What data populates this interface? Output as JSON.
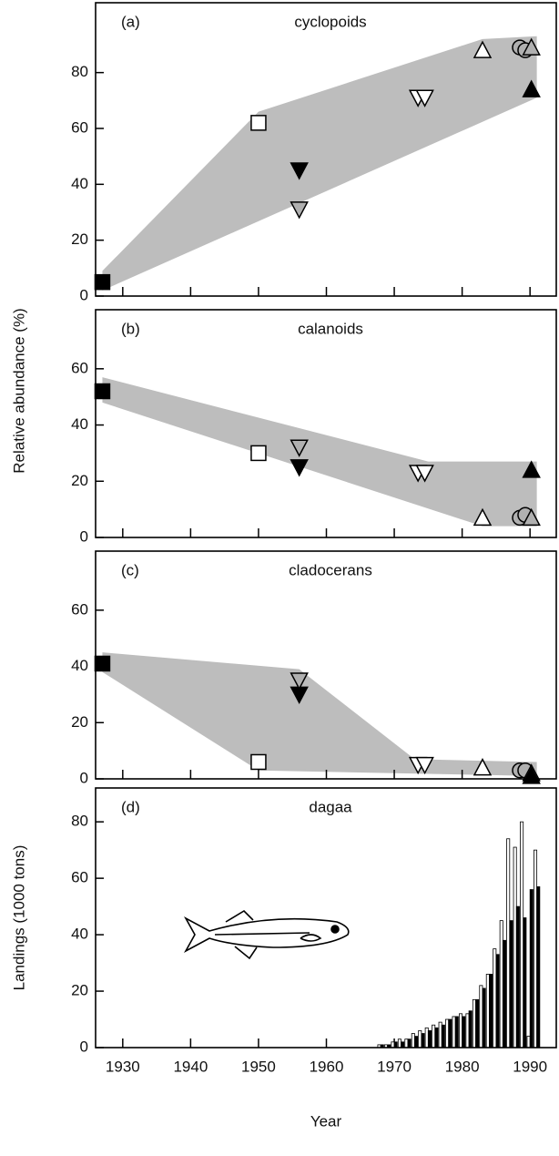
{
  "chart_data": [
    {
      "type": "scatter",
      "label": "(a)",
      "title": "cyclopoids",
      "xlim": [
        1926,
        1994
      ],
      "ylim": [
        0,
        105
      ],
      "yticks": [
        0,
        20,
        40,
        60,
        80
      ],
      "envelope": {
        "x": [
          1927,
          1950,
          1983,
          1991,
          1991,
          1927
        ],
        "y": [
          9,
          66,
          92,
          93,
          71,
          2
        ]
      },
      "series": [
        {
          "marker": "square",
          "fill": "#000000",
          "x": [
            1927
          ],
          "values": [
            5
          ]
        },
        {
          "marker": "square",
          "fill": "#ffffff",
          "x": [
            1950
          ],
          "values": [
            62
          ]
        },
        {
          "marker": "down",
          "fill": "#000000",
          "x": [
            1956
          ],
          "values": [
            45
          ]
        },
        {
          "marker": "down",
          "fill": "#b0b0b0",
          "x": [
            1956
          ],
          "values": [
            31
          ]
        },
        {
          "marker": "down",
          "fill": "#ffffff",
          "x": [
            1973.5,
            1974.5
          ],
          "values": [
            71,
            71
          ]
        },
        {
          "marker": "up",
          "fill": "#ffffff",
          "x": [
            1983
          ],
          "values": [
            88
          ]
        },
        {
          "marker": "circle",
          "fill": "#b0b0b0",
          "x": [
            1988.5,
            1989.3
          ],
          "values": [
            89,
            88
          ]
        },
        {
          "marker": "up",
          "fill": "#b0b0b0",
          "x": [
            1990.2
          ],
          "values": [
            89
          ]
        },
        {
          "marker": "up",
          "fill": "#000000",
          "x": [
            1990.2
          ],
          "values": [
            74
          ]
        }
      ]
    },
    {
      "type": "scatter",
      "label": "(b)",
      "title": "calanoids",
      "ylabel": "Relative abundance (%)",
      "xlim": [
        1926,
        1994
      ],
      "ylim": [
        0,
        81
      ],
      "yticks": [
        0,
        20,
        40,
        60
      ],
      "envelope": {
        "x": [
          1927,
          1975,
          1991,
          1991,
          1983,
          1927
        ],
        "y": [
          57,
          27,
          27,
          4,
          4,
          48
        ]
      },
      "series": [
        {
          "marker": "square",
          "fill": "#000000",
          "x": [
            1927
          ],
          "values": [
            52
          ]
        },
        {
          "marker": "square",
          "fill": "#ffffff",
          "x": [
            1950
          ],
          "values": [
            30
          ]
        },
        {
          "marker": "down",
          "fill": "#000000",
          "x": [
            1956
          ],
          "values": [
            25
          ]
        },
        {
          "marker": "down",
          "fill": "#b0b0b0",
          "x": [
            1956
          ],
          "values": [
            32
          ]
        },
        {
          "marker": "down",
          "fill": "#ffffff",
          "x": [
            1973.5,
            1974.5
          ],
          "values": [
            23,
            23
          ]
        },
        {
          "marker": "up",
          "fill": "#ffffff",
          "x": [
            1983
          ],
          "values": [
            7
          ]
        },
        {
          "marker": "circle",
          "fill": "#b0b0b0",
          "x": [
            1988.5,
            1989.3
          ],
          "values": [
            7,
            8
          ]
        },
        {
          "marker": "up",
          "fill": "#b0b0b0",
          "x": [
            1990.2
          ],
          "values": [
            7
          ]
        },
        {
          "marker": "up",
          "fill": "#000000",
          "x": [
            1990.2
          ],
          "values": [
            24
          ]
        }
      ]
    },
    {
      "type": "scatter",
      "label": "(c)",
      "title": "cladocerans",
      "xlim": [
        1926,
        1994
      ],
      "ylim": [
        0,
        81
      ],
      "yticks": [
        0,
        20,
        40,
        60
      ],
      "envelope": {
        "x": [
          1927,
          1956,
          1973,
          1991,
          1991,
          1950,
          1927
        ],
        "y": [
          45,
          39,
          7,
          6,
          1,
          3,
          38
        ]
      },
      "series": [
        {
          "marker": "square",
          "fill": "#000000",
          "x": [
            1927
          ],
          "values": [
            41
          ]
        },
        {
          "marker": "square",
          "fill": "#ffffff",
          "x": [
            1950
          ],
          "values": [
            6
          ]
        },
        {
          "marker": "down",
          "fill": "#000000",
          "x": [
            1956
          ],
          "values": [
            30
          ]
        },
        {
          "marker": "down",
          "fill": "#b0b0b0",
          "x": [
            1956
          ],
          "values": [
            35
          ]
        },
        {
          "marker": "down",
          "fill": "#ffffff",
          "x": [
            1973.5,
            1974.5
          ],
          "values": [
            5,
            5
          ]
        },
        {
          "marker": "up",
          "fill": "#ffffff",
          "x": [
            1983
          ],
          "values": [
            4
          ]
        },
        {
          "marker": "circle",
          "fill": "#b0b0b0",
          "x": [
            1988.5,
            1989.3
          ],
          "values": [
            3,
            3
          ]
        },
        {
          "marker": "up",
          "fill": "#b0b0b0",
          "x": [
            1990.2
          ],
          "values": [
            2
          ]
        },
        {
          "marker": "up",
          "fill": "#000000",
          "x": [
            1990.2
          ],
          "values": [
            1
          ]
        }
      ]
    },
    {
      "type": "bar",
      "label": "(d)",
      "title": "dagaa",
      "ylabel": "Landings (1000 tons)",
      "xlabel": "Year",
      "xlim": [
        1926,
        1994
      ],
      "ylim": [
        0,
        92
      ],
      "yticks": [
        0,
        20,
        40,
        60,
        80
      ],
      "xticks": [
        1930,
        1940,
        1950,
        1960,
        1970,
        1980,
        1990
      ],
      "x": [
        1968,
        1969,
        1970,
        1971,
        1972,
        1973,
        1974,
        1975,
        1976,
        1977,
        1978,
        1979,
        1980,
        1981,
        1982,
        1983,
        1984,
        1985,
        1986,
        1987,
        1988,
        1989,
        1990,
        1991
      ],
      "series": [
        {
          "fill": "#ffffff",
          "values": [
            1,
            1,
            2,
            3,
            3,
            5,
            6,
            7,
            8,
            9,
            10,
            11,
            12,
            12,
            17,
            22,
            26,
            35,
            45,
            74,
            71,
            80,
            4,
            70
          ]
        },
        {
          "fill": "#000000",
          "values": [
            1,
            1,
            2,
            2,
            3,
            4,
            5,
            6,
            7,
            8,
            10,
            11,
            11,
            13,
            17,
            21,
            26,
            33,
            38,
            45,
            50,
            46,
            56,
            57
          ]
        }
      ]
    }
  ]
}
